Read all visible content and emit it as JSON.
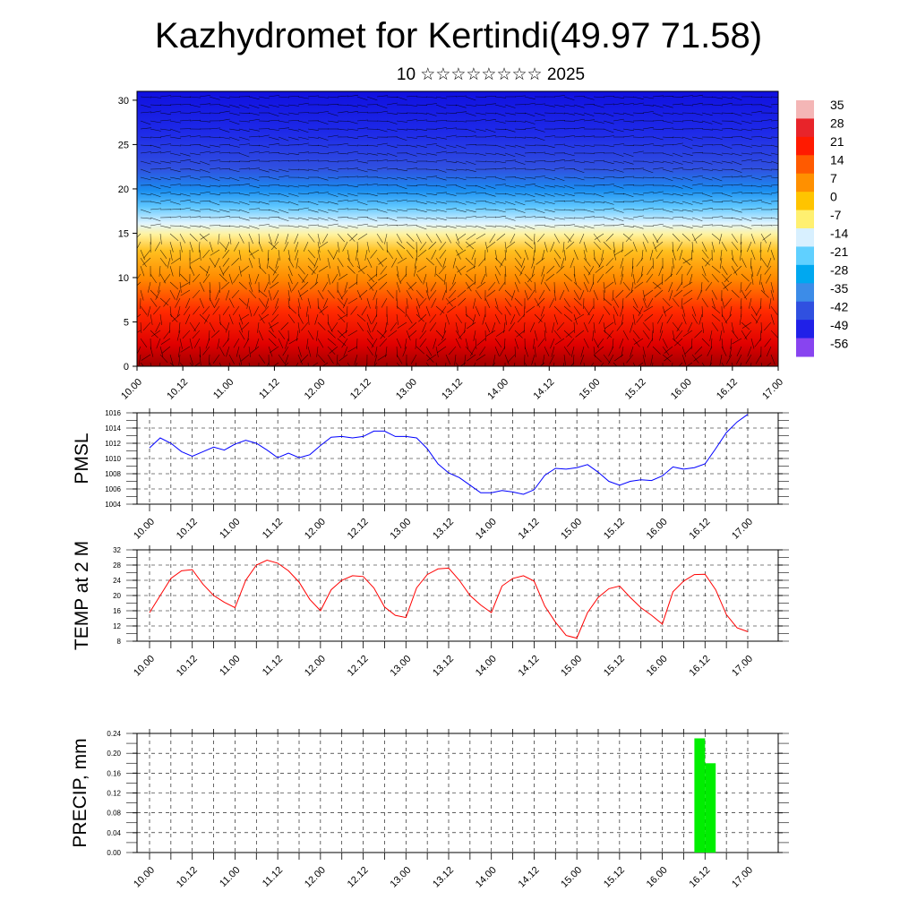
{
  "page": {
    "title": "Kazhydromet for Kertindi(49.97 71.58)",
    "subtitle": "10 ☆☆☆☆☆☆☆☆ 2025"
  },
  "chart_data": [
    {
      "type": "heatmap",
      "name": "temperature-wind-cross-section",
      "x_ticks": [
        "10.00",
        "10.12",
        "11.00",
        "11.12",
        "12.00",
        "12.12",
        "13.00",
        "13.12",
        "14.00",
        "14.12",
        "15.00",
        "15.12",
        "16.00",
        "16.12",
        "17.00"
      ],
      "y_ticks": [
        0,
        5,
        10,
        15,
        20,
        25,
        30
      ],
      "ylim": [
        0,
        31
      ],
      "colorbar": {
        "labels": [
          "35",
          "28",
          "21",
          "14",
          "7",
          "0",
          "-7",
          "-14",
          "-21",
          "-28",
          "-35",
          "-42",
          "-49",
          "-56"
        ],
        "colors": [
          "#f4b6b6",
          "#e8242a",
          "#ff1a00",
          "#ff5a00",
          "#ff9000",
          "#ffc400",
          "#fff070",
          "#d8f0ff",
          "#60d0ff",
          "#00a8f0",
          "#3c8ce8",
          "#3050e0",
          "#2020e8",
          "#8844f0"
        ]
      },
      "has_wind_barbs": true
    },
    {
      "type": "line",
      "ylabel": "PMSL",
      "x_ticks": [
        "10.00",
        "10.12",
        "11.00",
        "11.12",
        "12.00",
        "12.12",
        "13.00",
        "13.12",
        "14.00",
        "14.12",
        "15.00",
        "15.12",
        "16.00",
        "16.12",
        "17.00"
      ],
      "y_ticks": [
        "1004",
        "1006",
        "1008",
        "1010",
        "1012",
        "1014",
        "1016"
      ],
      "ylim": [
        1004,
        1016
      ],
      "x_hours": [
        0,
        3,
        6,
        9,
        12,
        15,
        18,
        21,
        24,
        27,
        30,
        33,
        36,
        39,
        42,
        45,
        48,
        51,
        54,
        57,
        60,
        63,
        66,
        69,
        72,
        75,
        78,
        81,
        84,
        87,
        90,
        93,
        96,
        99,
        102,
        105,
        108,
        111,
        114,
        117,
        120,
        123,
        126,
        129,
        132,
        135,
        138,
        141,
        144,
        147,
        150,
        153,
        156,
        159,
        162,
        165,
        168
      ],
      "values": [
        1011.4,
        1012.7,
        1012.0,
        1010.9,
        1010.3,
        1010.9,
        1011.5,
        1011.1,
        1011.9,
        1012.4,
        1012.0,
        1011.1,
        1010.1,
        1010.7,
        1010.1,
        1010.5,
        1011.7,
        1012.8,
        1012.9,
        1012.7,
        1012.9,
        1013.6,
        1013.6,
        1012.9,
        1012.9,
        1012.7,
        1011.3,
        1009.3,
        1008.1,
        1007.5,
        1006.5,
        1005.5,
        1005.5,
        1005.8,
        1005.6,
        1005.3,
        1005.9,
        1007.8,
        1008.7,
        1008.6,
        1008.8,
        1009.2,
        1008.2,
        1007.0,
        1006.5,
        1007.0,
        1007.2,
        1007.1,
        1007.7,
        1008.9,
        1008.6,
        1008.8,
        1009.3,
        1011.3,
        1013.4,
        1014.8,
        1015.8
      ],
      "color": "#0000ff",
      "grid": true
    },
    {
      "type": "line",
      "ylabel": "TEMP at 2 M",
      "x_ticks": [
        "10.00",
        "10.12",
        "11.00",
        "11.12",
        "12.00",
        "12.12",
        "13.00",
        "13.12",
        "14.00",
        "14.12",
        "15.00",
        "15.12",
        "16.00",
        "16.12",
        "17.00"
      ],
      "y_ticks": [
        "8",
        "12",
        "16",
        "20",
        "24",
        "28",
        "32"
      ],
      "ylim": [
        8,
        32
      ],
      "x_hours": [
        0,
        3,
        6,
        9,
        12,
        15,
        18,
        21,
        24,
        27,
        30,
        33,
        36,
        39,
        42,
        45,
        48,
        51,
        54,
        57,
        60,
        63,
        66,
        69,
        72,
        75,
        78,
        81,
        84,
        87,
        90,
        93,
        96,
        99,
        102,
        105,
        108,
        111,
        114,
        117,
        120,
        123,
        126,
        129,
        132,
        135,
        138,
        141,
        144,
        147,
        150,
        153,
        156,
        159,
        162,
        165,
        168
      ],
      "values": [
        15.5,
        20.0,
        24.5,
        26.5,
        26.8,
        23.0,
        20.0,
        18.2,
        16.8,
        24.0,
        28.0,
        29.3,
        28.5,
        26.5,
        23.5,
        19.0,
        16.0,
        21.5,
        24.0,
        25.2,
        25.0,
        22.0,
        17.0,
        14.8,
        14.2,
        22.0,
        25.5,
        27.0,
        27.2,
        24.0,
        20.0,
        17.5,
        15.5,
        22.5,
        24.5,
        25.2,
        23.8,
        17.2,
        13.0,
        9.5,
        8.8,
        15.5,
        19.5,
        21.8,
        22.5,
        19.5,
        16.8,
        14.8,
        12.5,
        21.0,
        23.8,
        25.5,
        25.6,
        21.5,
        15.0,
        11.5,
        10.5
      ],
      "color": "#ff0000",
      "grid": true
    },
    {
      "type": "bar",
      "ylabel": "PRECIP, mm",
      "x_ticks": [
        "10.00",
        "10.12",
        "11.00",
        "11.12",
        "12.00",
        "12.12",
        "13.00",
        "13.12",
        "14.00",
        "14.12",
        "15.00",
        "15.12",
        "16.00",
        "16.12",
        "17.00"
      ],
      "y_ticks": [
        "0.00",
        "0.04",
        "0.08",
        "0.12",
        "0.16",
        "0.20",
        "0.24"
      ],
      "ylim": [
        0,
        0.24
      ],
      "bars": [
        {
          "start_hour": 153,
          "end_hour": 156,
          "value": 0.23
        },
        {
          "start_hour": 156,
          "end_hour": 159,
          "value": 0.18
        }
      ],
      "color": "#00ee00",
      "grid": true
    }
  ]
}
